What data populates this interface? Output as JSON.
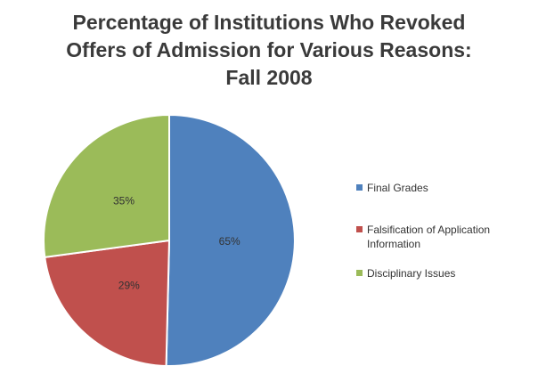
{
  "chart_data": {
    "type": "pie",
    "title_lines": [
      "Percentage of Institutions Who Revoked",
      "Offers of Admission for Various Reasons:",
      "Fall 2008"
    ],
    "categories": [
      "Final Grades",
      "Falsification of Application Information",
      "Disciplinary Issues"
    ],
    "values": [
      65,
      29,
      35
    ],
    "data_labels": [
      "65%",
      "29%",
      "35%"
    ],
    "colors": [
      "#4f81bd",
      "#c0504d",
      "#9bbb59"
    ],
    "legend_position": "right"
  }
}
